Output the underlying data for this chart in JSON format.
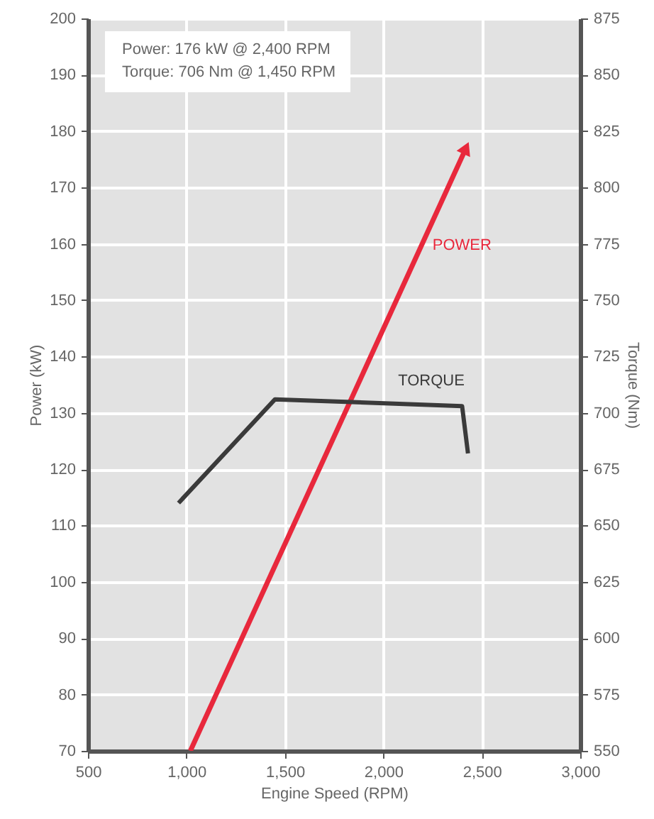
{
  "chart_data": {
    "type": "line",
    "xlabel": "Engine Speed (RPM)",
    "ylabel": "Power (kW)",
    "y2label": "Torque (Nm)",
    "annotations": [
      "Power: 176 kW @ 2,400 RPM",
      "Torque: 706 Nm @ 1,450 RPM"
    ],
    "series": [
      {
        "name": "POWER",
        "color": "#e8283c",
        "x": [
          1020,
          2420
        ],
        "values": [
          70,
          177
        ]
      },
      {
        "name": "TORQUE",
        "color": "#3a3a3a",
        "axis": "y2",
        "x": [
          960,
          1450,
          2400,
          2430
        ],
        "values": [
          660,
          706,
          703,
          682
        ]
      }
    ],
    "xlim": [
      500,
      3000
    ],
    "xticks": [
      500,
      {
        "value": 1000,
        "label": "1,000"
      },
      {
        "value": 1500,
        "label": "1,500"
      },
      {
        "value": 2000,
        "label": "2,000"
      },
      {
        "value": 2500,
        "label": "2,500"
      },
      {
        "value": 3000,
        "label": "3,000"
      }
    ],
    "ylim": [
      70,
      200
    ],
    "yticks": [
      70,
      80,
      90,
      100,
      110,
      120,
      130,
      140,
      150,
      160,
      170,
      180,
      190,
      200
    ],
    "y2lim": [
      550,
      875
    ],
    "y2ticks": [
      550,
      575,
      600,
      625,
      650,
      675,
      700,
      725,
      750,
      775,
      800,
      825,
      850,
      875
    ],
    "grid": true
  }
}
